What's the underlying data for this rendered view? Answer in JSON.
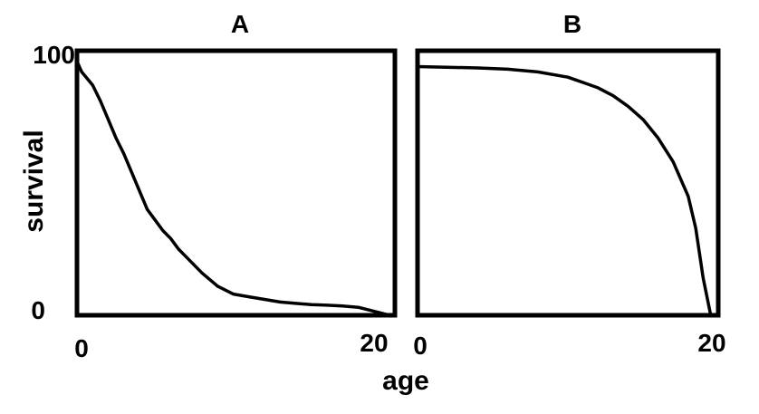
{
  "chart_data": [
    {
      "type": "line",
      "title": "A",
      "xlabel": "age",
      "ylabel": "survival",
      "xlim": [
        0,
        20
      ],
      "ylim": [
        0,
        100
      ],
      "x_ticks": [
        "0",
        "20"
      ],
      "y_ticks": [
        "100",
        "0"
      ],
      "grid": false,
      "series": [
        {
          "x": [
            0,
            0.3,
            1,
            1.5,
            2,
            2.5,
            3,
            3.5,
            4,
            4.5,
            5,
            5.5,
            6,
            6.5,
            7,
            8,
            9,
            10,
            11,
            12,
            13,
            14,
            15,
            16,
            17,
            18,
            19,
            20
          ],
          "y": [
            96,
            92,
            87,
            81,
            74,
            67,
            61,
            54,
            47,
            40,
            36,
            32,
            29,
            25,
            22,
            16,
            11,
            8,
            7,
            6,
            5,
            4.5,
            4,
            3.8,
            3.5,
            3,
            1.5,
            0
          ]
        }
      ]
    },
    {
      "type": "line",
      "title": "B",
      "xlabel": "age",
      "ylabel": "survival",
      "xlim": [
        0,
        20
      ],
      "ylim": [
        0,
        100
      ],
      "x_ticks": [
        "0",
        "20"
      ],
      "y_ticks": [
        "100",
        "0"
      ],
      "grid": false,
      "series": [
        {
          "x": [
            0,
            4,
            6,
            8,
            10,
            11,
            12,
            13,
            14,
            15,
            16,
            17,
            18,
            18.5,
            19,
            19.5
          ],
          "y": [
            94,
            93.5,
            93,
            92,
            90,
            88,
            86,
            83,
            79,
            74,
            67,
            58,
            45,
            33,
            14,
            0
          ]
        }
      ]
    }
  ]
}
